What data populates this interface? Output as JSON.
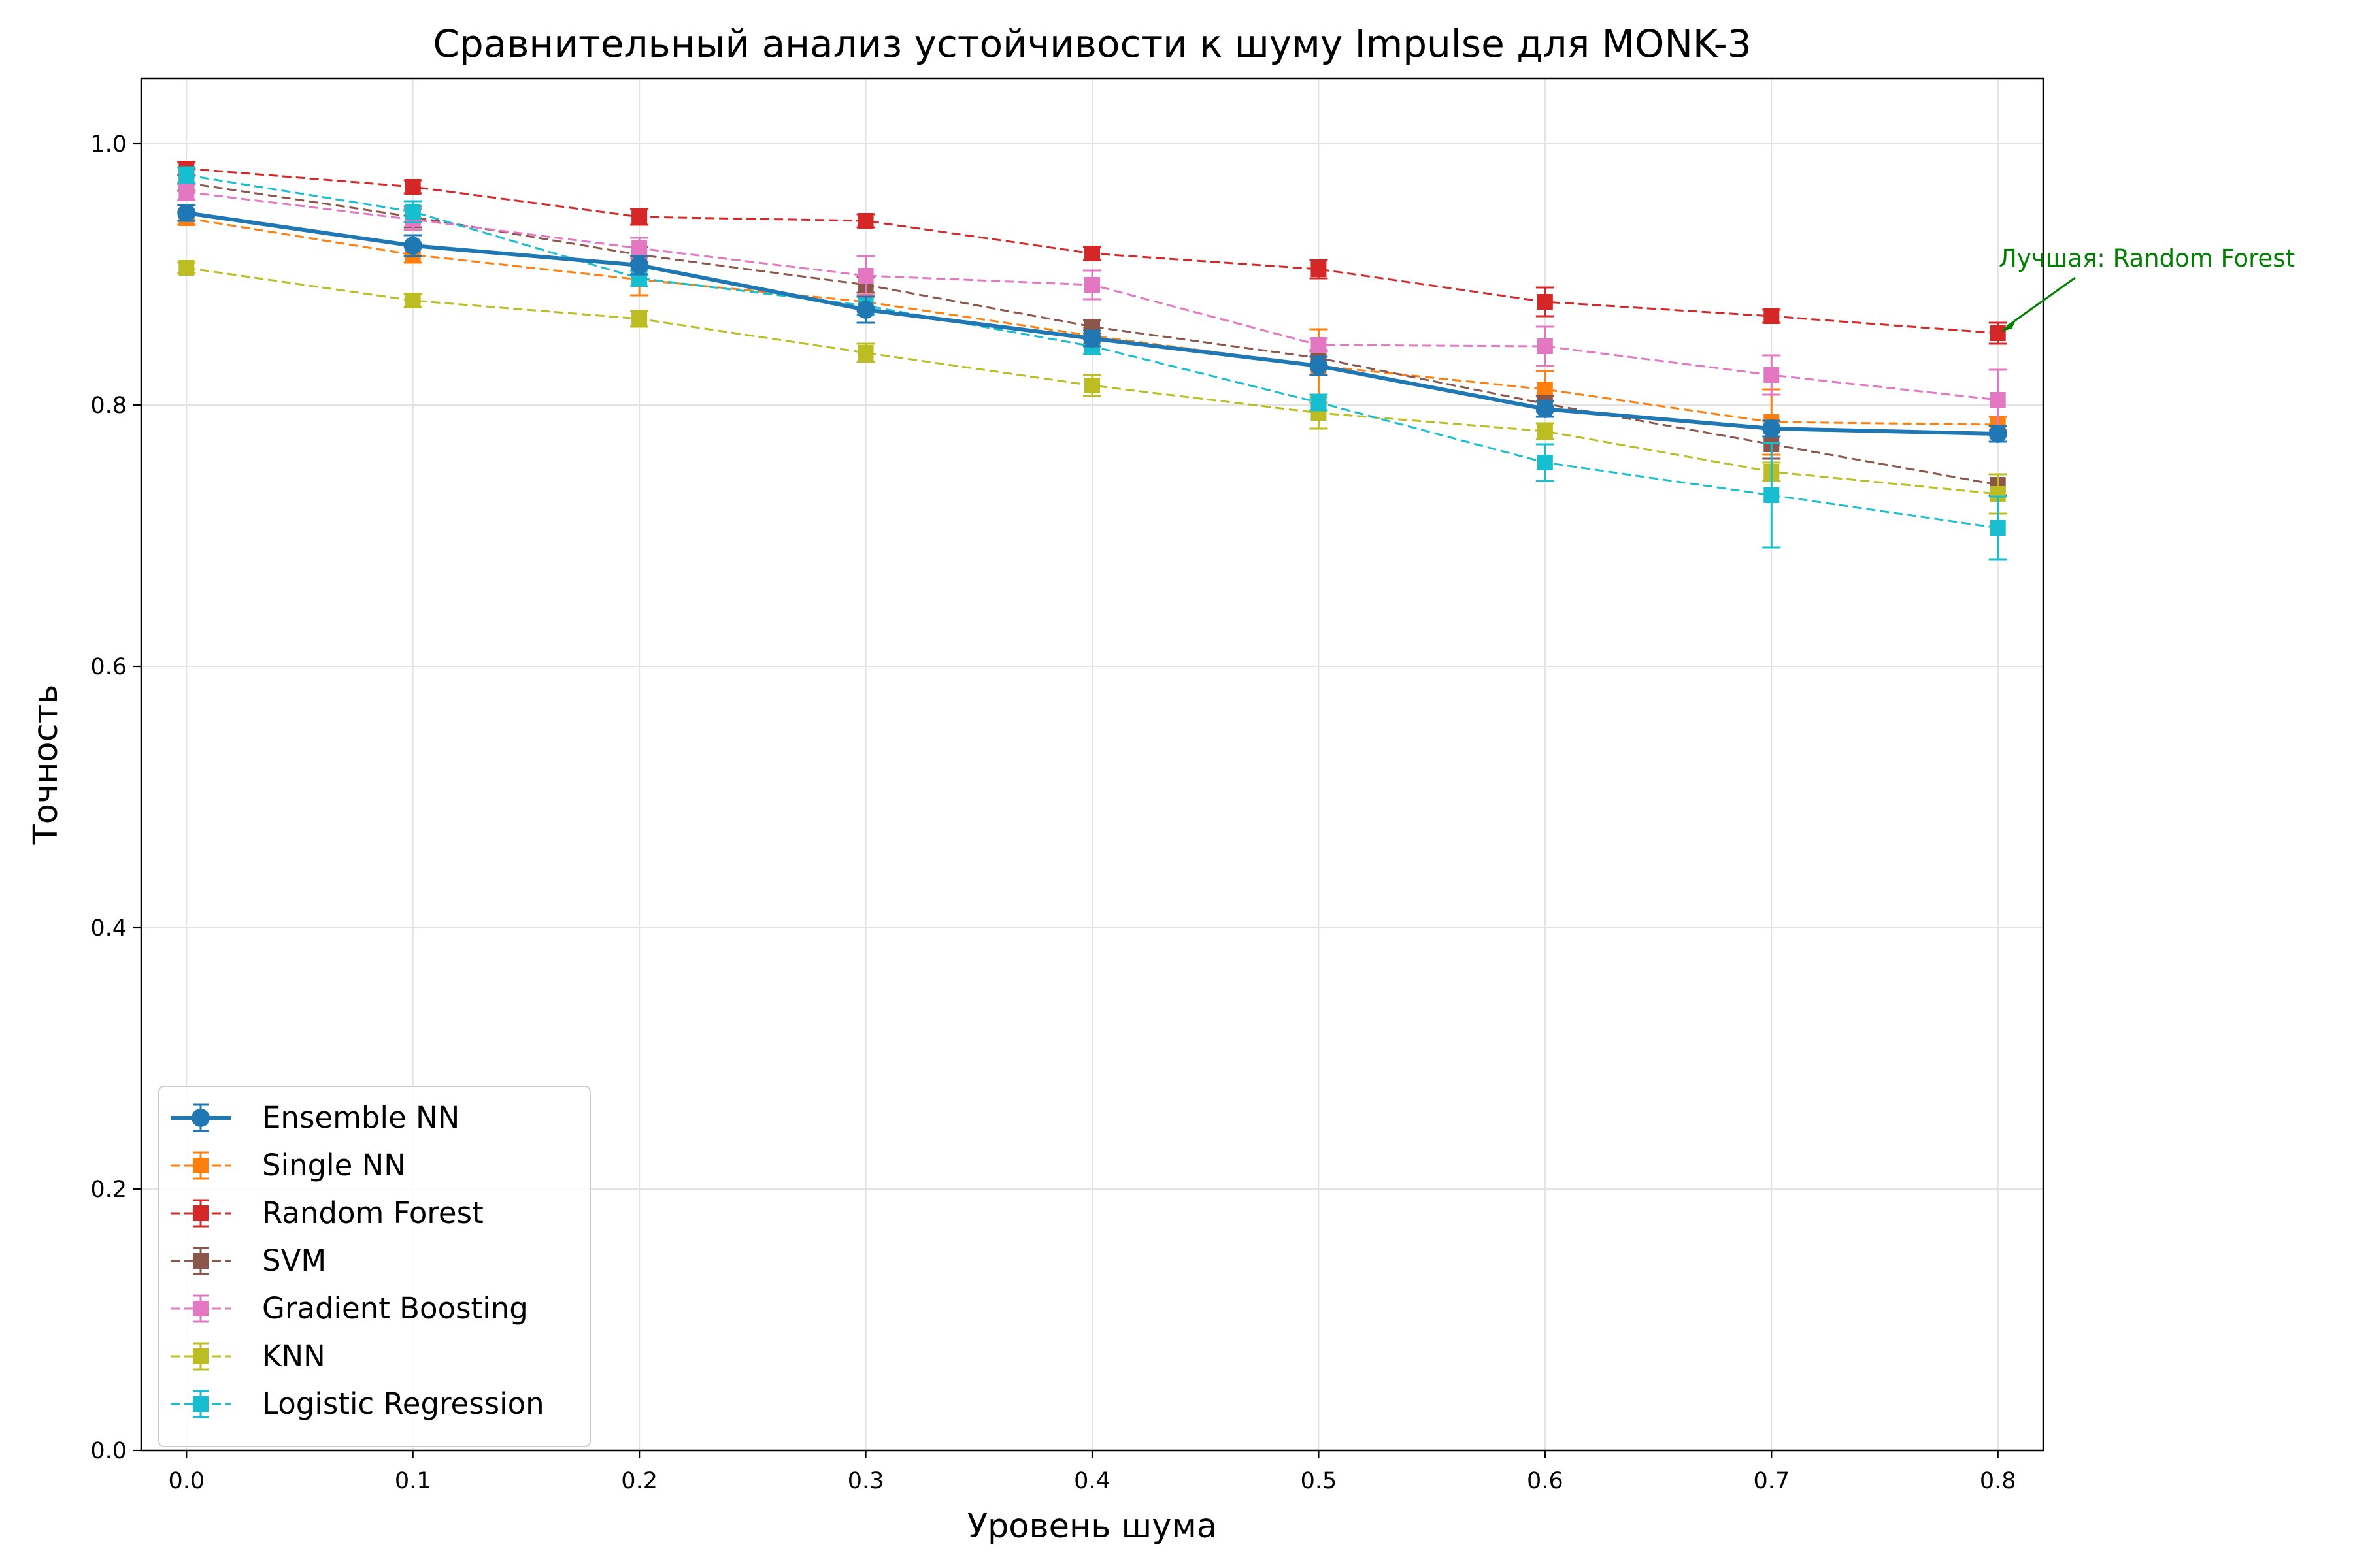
{
  "chart_data": {
    "type": "line",
    "title": "Сравнительный анализ устойчивости к шуму Impulse для MONK-3",
    "xlabel": "Уровень шума",
    "ylabel": "Точность",
    "x": [
      0.0,
      0.1,
      0.2,
      0.3,
      0.4,
      0.5,
      0.6,
      0.7,
      0.8
    ],
    "x_ticks": [
      "0.0",
      "0.1",
      "0.2",
      "0.3",
      "0.4",
      "0.5",
      "0.6",
      "0.7",
      "0.8"
    ],
    "y_ticks": [
      "0.0",
      "0.2",
      "0.4",
      "0.6",
      "0.8",
      "1.0"
    ],
    "xlim": [
      -0.02,
      0.82
    ],
    "ylim": [
      0.0,
      1.05
    ],
    "grid": true,
    "legend_position": "lower-left",
    "series": [
      {
        "name": "Ensemble NN",
        "color": "#1f77b4",
        "style": "solid",
        "marker": "circle",
        "values": [
          0.947,
          0.922,
          0.907,
          0.873,
          0.851,
          0.83,
          0.797,
          0.782,
          0.778
        ],
        "errors": [
          0.006,
          0.008,
          0.007,
          0.01,
          0.006,
          0.007,
          0.006,
          0.006,
          0.006
        ]
      },
      {
        "name": "Single NN",
        "color": "#ff7f0e",
        "style": "dashed",
        "marker": "square",
        "values": [
          0.943,
          0.915,
          0.896,
          0.879,
          0.853,
          0.83,
          0.812,
          0.787,
          0.785
        ],
        "errors": [
          0.005,
          0.006,
          0.012,
          0.007,
          0.006,
          0.028,
          0.014,
          0.025,
          0.006
        ]
      },
      {
        "name": "Random Forest",
        "color": "#d62728",
        "style": "dashed",
        "marker": "square",
        "values": [
          0.981,
          0.967,
          0.944,
          0.941,
          0.916,
          0.904,
          0.879,
          0.868,
          0.855
        ],
        "errors": [
          0.005,
          0.005,
          0.006,
          0.005,
          0.005,
          0.007,
          0.011,
          0.005,
          0.008
        ]
      },
      {
        "name": "SVM",
        "color": "#8c564b",
        "style": "dashed",
        "marker": "square",
        "values": [
          0.97,
          0.944,
          0.915,
          0.892,
          0.86,
          0.836,
          0.801,
          0.77,
          0.739
        ],
        "errors": [
          0.006,
          0.008,
          0.006,
          0.006,
          0.005,
          0.006,
          0.006,
          0.011,
          0.008
        ]
      },
      {
        "name": "Gradient Boosting",
        "color": "#e377c2",
        "style": "dashed",
        "marker": "square",
        "values": [
          0.963,
          0.942,
          0.92,
          0.899,
          0.892,
          0.846,
          0.845,
          0.823,
          0.804
        ],
        "errors": [
          0.006,
          0.008,
          0.008,
          0.015,
          0.011,
          0.005,
          0.015,
          0.015,
          0.023
        ]
      },
      {
        "name": "KNN",
        "color": "#bcbd22",
        "style": "dashed",
        "marker": "square",
        "values": [
          0.905,
          0.88,
          0.866,
          0.84,
          0.815,
          0.794,
          0.78,
          0.749,
          0.732
        ],
        "errors": [
          0.004,
          0.005,
          0.006,
          0.007,
          0.008,
          0.012,
          0.006,
          0.007,
          0.015
        ]
      },
      {
        "name": "Logistic Regression",
        "color": "#17becf",
        "style": "dashed",
        "marker": "square",
        "values": [
          0.976,
          0.948,
          0.897,
          0.876,
          0.845,
          0.802,
          0.756,
          0.731,
          0.706
        ],
        "errors": [
          0.006,
          0.008,
          0.006,
          0.007,
          0.006,
          0.006,
          0.014,
          0.04,
          0.024
        ]
      }
    ],
    "annotation": {
      "text": "Лучшая: Random Forest",
      "color": "#008000",
      "target_x": 0.8,
      "target_y": 0.855
    }
  }
}
